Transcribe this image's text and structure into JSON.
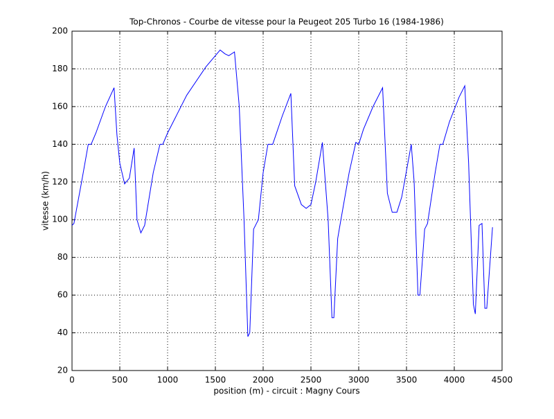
{
  "chart_data": {
    "type": "line",
    "title": "Top-Chronos - Courbe de vitesse pour la Peugeot 205 Turbo 16 (1984-1986)",
    "x_label": "position (m) - circuit : Magny Cours",
    "y_label": "vitesse (km/h)",
    "xlim": [
      0,
      4500
    ],
    "xticks": [
      0,
      500,
      1000,
      1500,
      2000,
      2500,
      3000,
      3500,
      4000,
      4500
    ],
    "ylim": [
      20,
      200
    ],
    "yticks": [
      20,
      40,
      60,
      80,
      100,
      120,
      140,
      160,
      180,
      200
    ],
    "grid": true,
    "x": [
      0,
      20,
      100,
      170,
      200,
      250,
      350,
      440,
      470,
      500,
      550,
      600,
      650,
      680,
      720,
      760,
      850,
      920,
      950,
      1000,
      1200,
      1400,
      1550,
      1600,
      1640,
      1700,
      1750,
      1800,
      1840,
      1860,
      1900,
      1950,
      2000,
      2050,
      2100,
      2200,
      2290,
      2330,
      2400,
      2450,
      2500,
      2550,
      2620,
      2680,
      2720,
      2740,
      2780,
      2800,
      2900,
      2970,
      3000,
      3050,
      3150,
      3250,
      3300,
      3350,
      3400,
      3450,
      3550,
      3580,
      3620,
      3640,
      3690,
      3720,
      3800,
      3850,
      3880,
      3950,
      4050,
      4110,
      4150,
      4200,
      4220,
      4260,
      4290,
      4320,
      4340,
      4400
    ],
    "series": [
      {
        "name": "vitesse",
        "color": "#0000ff",
        "values": [
          97,
          98,
          120,
          140,
          140,
          146,
          160,
          170,
          145,
          130,
          119,
          122,
          138,
          100,
          93,
          97,
          125,
          140,
          140,
          146,
          166,
          181,
          190,
          188,
          187,
          189,
          160,
          100,
          38,
          40,
          95,
          100,
          125,
          140,
          140,
          155,
          167,
          118,
          108,
          106,
          108,
          120,
          141,
          100,
          48,
          48,
          90,
          96,
          125,
          141,
          140,
          148,
          160,
          170,
          114,
          104,
          104,
          112,
          140,
          120,
          60,
          60,
          95,
          98,
          125,
          140,
          140,
          152,
          165,
          171,
          130,
          55,
          50,
          97,
          98,
          53,
          53,
          96
        ]
      }
    ]
  }
}
